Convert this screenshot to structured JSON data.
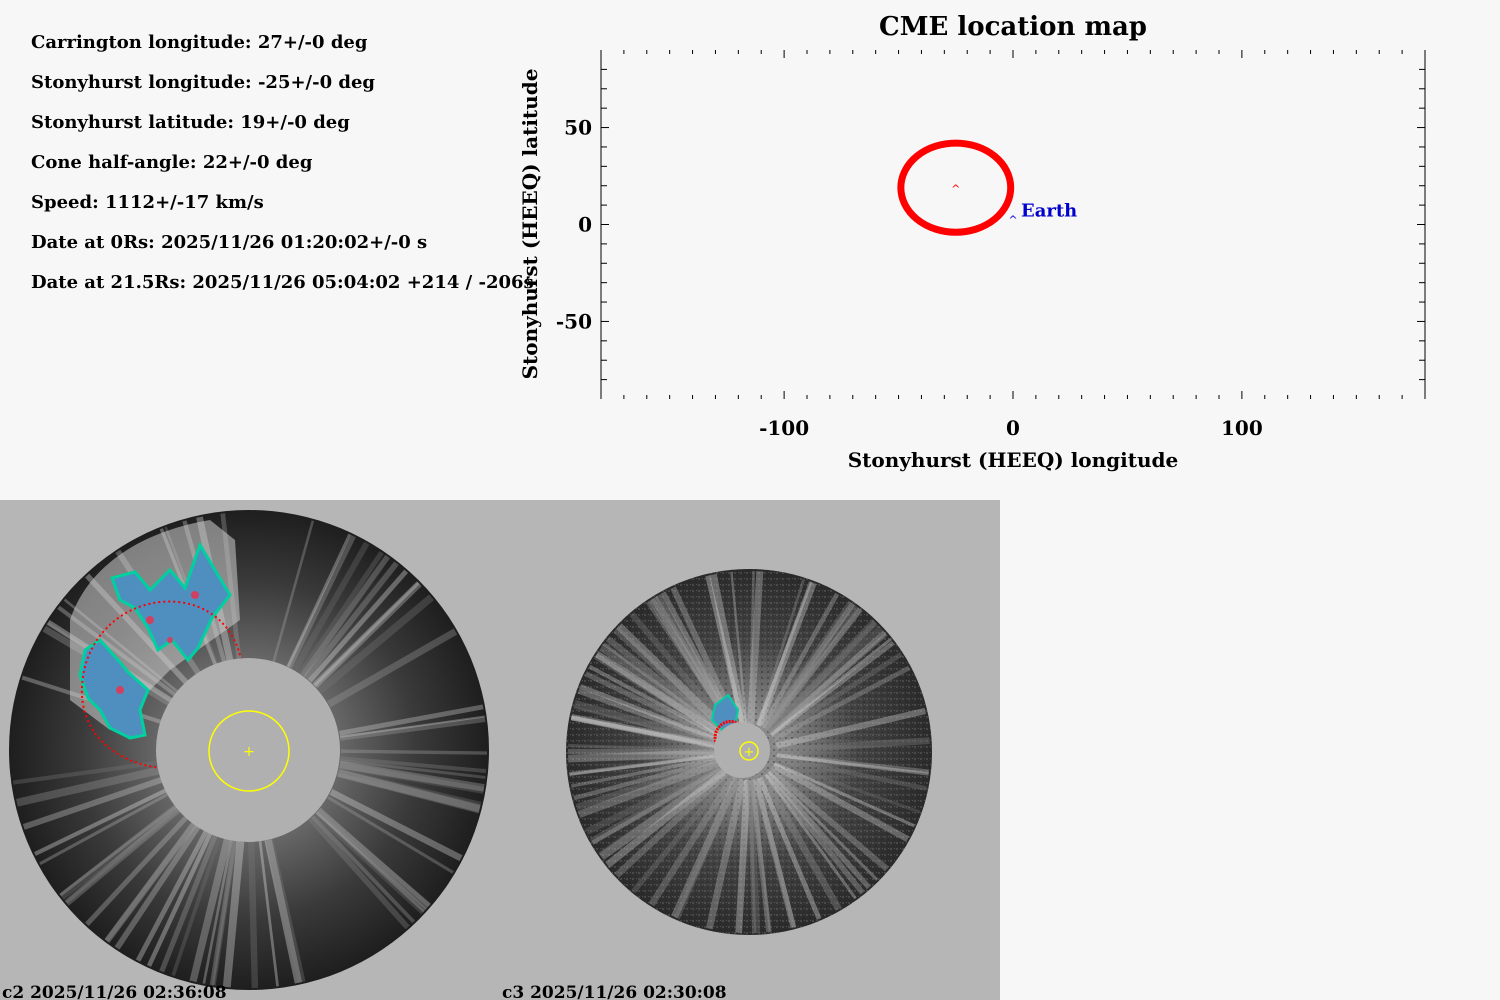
{
  "info": {
    "carrington_longitude": "Carrington longitude: 27+/-0 deg",
    "stonyhurst_longitude": "Stonyhurst longitude: -25+/-0 deg",
    "stonyhurst_latitude": "Stonyhurst latitude: 19+/-0 deg",
    "cone_half_angle": "Cone half-angle: 22+/-0 deg",
    "speed": "Speed: 1112+/-17 km/s",
    "date_0rs": "Date at 0Rs: 2025/11/26 01:20:02+/-0 s",
    "date_21rs": "Date at 21.5Rs: 2025/11/26 05:04:02 +214 / -206s"
  },
  "chart_data": {
    "type": "scatter",
    "title": "CME location map",
    "xlabel": "Stonyhurst (HEEQ) longitude",
    "ylabel": "Stonyhurst (HEEQ) latitude",
    "xlim": [
      -180,
      180
    ],
    "ylim": [
      -90,
      90
    ],
    "xticks": [
      -100,
      0,
      100
    ],
    "xtick_labels": [
      "-100",
      "0",
      "100"
    ],
    "yticks": [
      50,
      0,
      -50
    ],
    "ytick_labels": [
      "50",
      "0",
      "-50"
    ],
    "grid": false,
    "points": [
      {
        "name": "CME center",
        "x": -25,
        "y": 19,
        "color": "#ff0000",
        "marker": "^"
      },
      {
        "name": "Earth",
        "label": "Earth",
        "x": 0,
        "y": 3,
        "color": "#0000cc",
        "marker": "^"
      }
    ],
    "cone_outline": {
      "center_x": -25,
      "center_y": 19,
      "radius_x": 24,
      "radius_y": 23,
      "color": "#ff0000"
    }
  },
  "panels": [
    {
      "id": "c2",
      "label": "c2 2025/11/26 02:36:08"
    },
    {
      "id": "c3",
      "label": "c3 2025/11/26 02:30:08"
    }
  ],
  "colors": {
    "cme_outline": "#ff0000",
    "sun_circle": "#ffff00",
    "earth_label": "#0000cc",
    "panel_background": "#b6b6b6",
    "page_background": "#f7f7f7"
  }
}
